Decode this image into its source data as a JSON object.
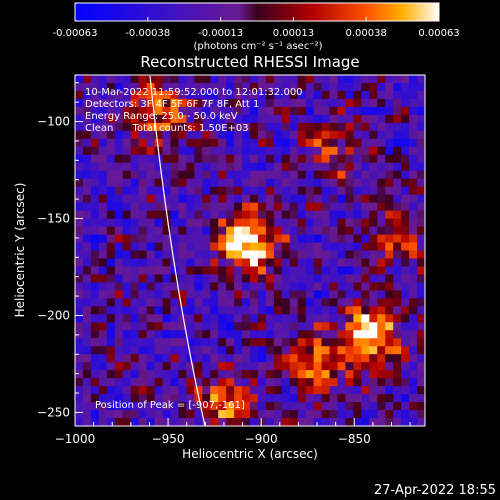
{
  "colorbar": {
    "ticks": [
      "-0.00063",
      "-0.00038",
      "-0.00013",
      "0.00013",
      "0.00038",
      "0.00063"
    ],
    "unit_label": "(photons cm⁻² s⁻¹ asec⁻²)"
  },
  "chart_data": {
    "type": "heatmap",
    "title": "Reconstructed RHESSI Image",
    "xlabel": "Heliocentric X (arcsec)",
    "ylabel": "Heliocentric Y (arcsec)",
    "xlim": [
      -1000,
      -812
    ],
    "ylim": [
      -257,
      -76
    ],
    "x_ticks": [
      -1000,
      -950,
      -900,
      -850
    ],
    "y_ticks": [
      -100,
      -150,
      -200,
      -250
    ],
    "x_tick_labels": [
      "−1000",
      "−950",
      "−900",
      "−850"
    ],
    "y_tick_labels": [
      "−100",
      "−150",
      "−200",
      "−250"
    ],
    "value_range": [
      -0.00063,
      0.00063
    ],
    "colormap": "blue-purple-red-yellow-white",
    "hotspots": [
      {
        "x": -907,
        "y": -161,
        "strength": 1.0
      },
      {
        "x": -840,
        "y": -210,
        "strength": 0.85
      },
      {
        "x": -955,
        "y": -95,
        "strength": 0.55
      },
      {
        "x": -870,
        "y": -225,
        "strength": 0.6
      },
      {
        "x": -825,
        "y": -160,
        "strength": 0.5
      },
      {
        "x": -920,
        "y": -245,
        "strength": 0.55
      },
      {
        "x": -860,
        "y": -115,
        "strength": 0.45
      }
    ],
    "annotations": [
      "10-Mar-2022 11:59:52.000 to 12:01:32.000",
      "Detectors: 3F 4F 5F 6F 7F 8F, Att 1",
      "Energy Range: 25.0 - 50.0 keV",
      "Clean      Total counts: 1.50E+03"
    ],
    "peak_label": "Position of Peak = [-907,-161]"
  },
  "footer": {
    "timestamp": "27-Apr-2022 18:55"
  }
}
